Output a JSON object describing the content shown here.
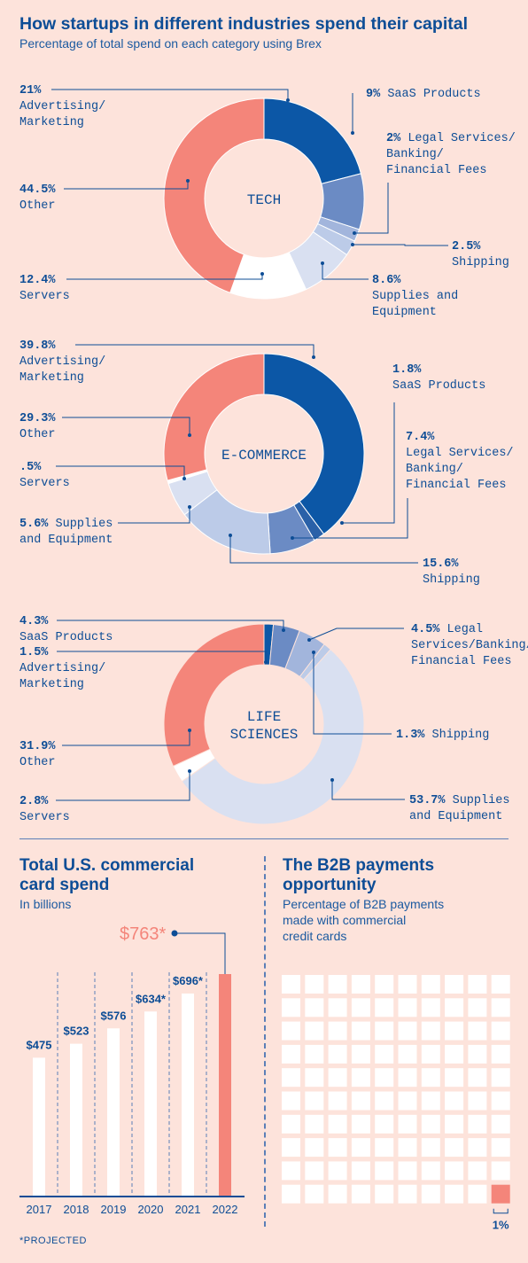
{
  "header": {
    "title": "How startups in different industries spend their capital",
    "subtitle": "Percentage of total spend on each category using Brex"
  },
  "colors": {
    "background": "#fde3db",
    "navy": "#0d4d96",
    "advertising": "#0c57a6",
    "saas": "#2a61a8",
    "legal": "#6b8bc4",
    "legal_light": "#a2b5dc",
    "shipping": "#bccbe8",
    "supplies": "#d9e0f1",
    "servers": "#ffffff",
    "other": "#f4857a"
  },
  "chart_data": [
    {
      "type": "pie",
      "center_label": "TECH",
      "slices": [
        {
          "pct": "21%",
          "label": "Advertising/\nMarketing",
          "value": 21,
          "color": "advertising"
        },
        {
          "pct": "9%",
          "label": "SaaS Products",
          "value": 9,
          "color": "legal"
        },
        {
          "pct": "2%",
          "label": "Legal Services/\nBanking/\nFinancial Fees",
          "value": 2,
          "color": "legal_light"
        },
        {
          "pct": "2.5%",
          "label": "Shipping",
          "value": 2.5,
          "color": "shipping"
        },
        {
          "pct": "8.6%",
          "label": "Supplies and\nEquipment",
          "value": 8.6,
          "color": "supplies"
        },
        {
          "pct": "12.4%",
          "label": "Servers",
          "value": 12.4,
          "color": "servers"
        },
        {
          "pct": "44.5%",
          "label": "Other",
          "value": 44.5,
          "color": "other"
        }
      ]
    },
    {
      "type": "pie",
      "center_label": "E-COMMERCE",
      "slices": [
        {
          "pct": "39.8%",
          "label": "Advertising/\nMarketing",
          "value": 39.8,
          "color": "advertising"
        },
        {
          "pct": "1.8%",
          "label": "SaaS Products",
          "value": 1.8,
          "color": "saas"
        },
        {
          "pct": "7.4%",
          "label": "Legal Services/\nBanking/\nFinancial Fees",
          "value": 7.4,
          "color": "legal"
        },
        {
          "pct": "15.6%",
          "label": "Shipping",
          "value": 15.6,
          "color": "shipping"
        },
        {
          "pct": "5.6%",
          "label": "Supplies\nand Equipment",
          "value": 5.6,
          "color": "supplies"
        },
        {
          "pct": ".5%",
          "label": "Servers",
          "value": 0.5,
          "color": "servers"
        },
        {
          "pct": "29.3%",
          "label": "Other",
          "value": 29.3,
          "color": "other"
        }
      ]
    },
    {
      "type": "pie",
      "center_label": "LIFE\nSCIENCES",
      "slices": [
        {
          "pct": "1.5%",
          "label": "Advertising/\nMarketing",
          "value": 1.5,
          "color": "advertising"
        },
        {
          "pct": "4.3%",
          "label": "SaaS Products",
          "value": 4.3,
          "color": "legal"
        },
        {
          "pct": "4.5%",
          "label": "Legal\nServices/Banking/\nFinancial Fees",
          "value": 4.5,
          "color": "legal_light"
        },
        {
          "pct": "1.3%",
          "label": "Shipping",
          "value": 1.3,
          "color": "shipping"
        },
        {
          "pct": "53.7%",
          "label": "Supplies\nand Equipment",
          "value": 53.7,
          "color": "supplies"
        },
        {
          "pct": "2.8%",
          "label": "Servers",
          "value": 2.8,
          "color": "servers"
        },
        {
          "pct": "31.9%",
          "label": "Other",
          "value": 31.9,
          "color": "other"
        }
      ]
    },
    {
      "type": "bar",
      "title": "Total U.S. commercial\ncard spend",
      "subtitle": "In billions",
      "categories": [
        "2017",
        "2018",
        "2019",
        "2020",
        "2021",
        "2022"
      ],
      "values": [
        475,
        523,
        576,
        634,
        696,
        763
      ],
      "value_labels": [
        "$475",
        "$523",
        "$576",
        "$634*",
        "$696*",
        "$763*"
      ],
      "projected": [
        false,
        false,
        false,
        true,
        true,
        true
      ]
    },
    {
      "type": "waffle",
      "title": "The B2B payments\nopportunity",
      "subtitle": "Percentage of B2B payments\nmade with commercial\ncredit cards",
      "total_cells": 100,
      "highlighted_cells": 1,
      "highlight_label": "1%"
    }
  ],
  "footnote": "*PROJECTED"
}
